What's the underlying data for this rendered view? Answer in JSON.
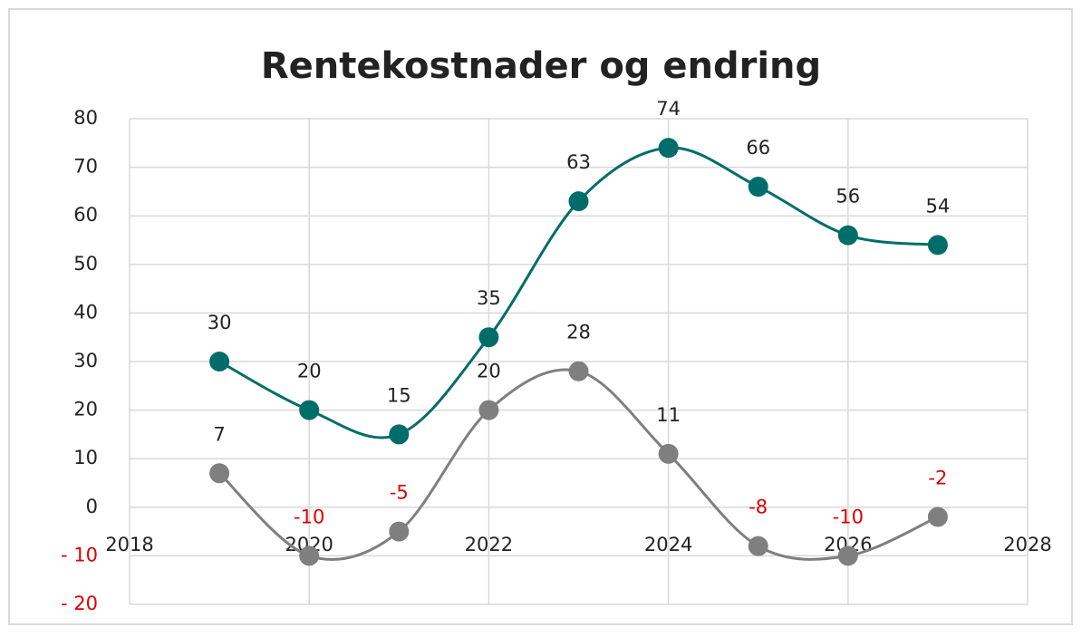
{
  "chart_data": {
    "type": "line",
    "title": "Rentekostnader og endring",
    "x": [
      2019,
      2020,
      2021,
      2022,
      2023,
      2024,
      2025,
      2026,
      2027
    ],
    "series": [
      {
        "color": "#006d6a",
        "values": [
          30,
          20,
          15,
          35,
          63,
          74,
          66,
          56,
          54
        ]
      },
      {
        "color": "#7f7f7f",
        "values": [
          7,
          -10,
          -5,
          20,
          28,
          11,
          -8,
          -10,
          -2
        ]
      }
    ],
    "xlim": [
      2018,
      2028
    ],
    "xticks": [
      2018,
      2020,
      2022,
      2024,
      2026,
      2028
    ],
    "ylim": [
      -20,
      80
    ],
    "yticks": [
      {
        "value": -20,
        "label": "- 20"
      },
      {
        "value": -10,
        "label": "- 10"
      },
      0,
      10,
      20,
      30,
      40,
      50,
      60,
      70,
      80
    ],
    "grid": true,
    "smooth": true,
    "negative_color": "#e00000"
  }
}
